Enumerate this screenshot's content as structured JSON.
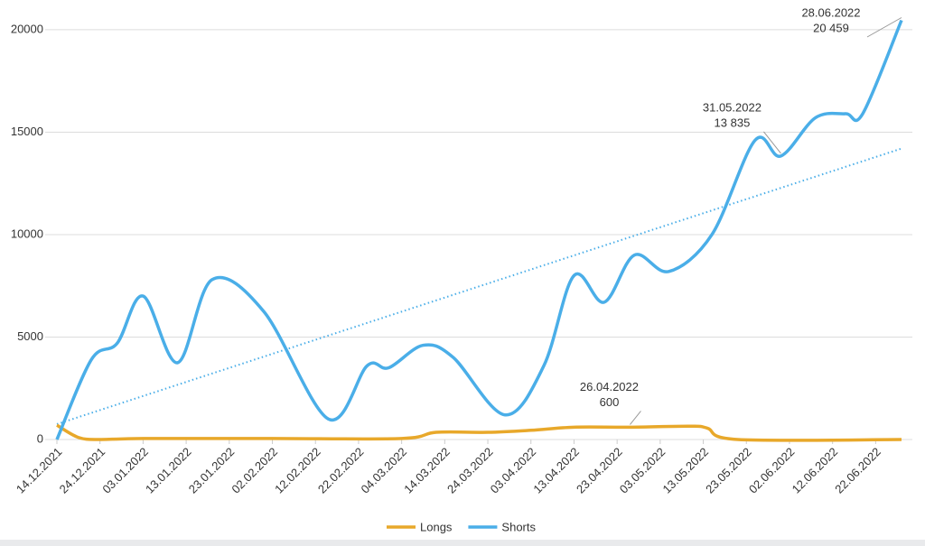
{
  "chart_data": {
    "type": "line",
    "ylim": [
      0,
      21450
    ],
    "yticks": [
      0,
      5000,
      10000,
      15000,
      20000
    ],
    "grid": true,
    "xlim": [
      "14.12.2021",
      "28.06.2022"
    ],
    "xticks": [
      "14.12.2021",
      "24.12.2021",
      "03.01.2022",
      "13.01.2022",
      "23.01.2022",
      "02.02.2022",
      "12.02.2022",
      "22.02.2022",
      "04.03.2022",
      "14.03.2022",
      "24.03.2022",
      "03.04.2022",
      "13.04.2022",
      "23.04.2022",
      "03.05.2022",
      "13.05.2022",
      "23.05.2022",
      "02.06.2022",
      "12.06.2022",
      "22.06.2022"
    ],
    "legend": "bottom",
    "series": [
      {
        "name": "Longs",
        "color": "#e8a82a",
        "x": [
          "14.12.2021",
          "19.12.2021",
          "24.12.2021",
          "03.01.2022",
          "02.02.2022",
          "04.03.2022",
          "12.03.2022",
          "24.03.2022",
          "03.04.2022",
          "13.04.2022",
          "26.04.2022",
          "10.05.2022",
          "14.05.2022",
          "21.05.2022",
          "28.06.2022"
        ],
        "values": [
          700,
          100,
          0,
          50,
          50,
          50,
          350,
          350,
          450,
          600,
          600,
          650,
          550,
          0,
          0
        ],
        "value_labels": [
          null,
          null,
          null,
          null,
          null,
          null,
          null,
          null,
          null,
          null,
          "600",
          null,
          null,
          null,
          null
        ]
      },
      {
        "name": "Shorts",
        "color": "#4aaee8",
        "x": [
          "14.12.2021",
          "22.12.2021",
          "28.12.2021",
          "03.01.2022",
          "11.01.2022",
          "19.01.2022",
          "31.01.2022",
          "15.02.2022",
          "24.02.2022",
          "01.03.2022",
          "09.03.2022",
          "16.03.2022",
          "28.03.2022",
          "06.04.2022",
          "13.04.2022",
          "20.04.2022",
          "27.04.2022",
          "05.05.2022",
          "15.05.2022",
          "25.05.2022",
          "31.05.2022",
          "08.06.2022",
          "15.06.2022",
          "19.06.2022",
          "28.06.2022"
        ],
        "values": [
          0,
          3900,
          4700,
          7000,
          3750,
          7800,
          6250,
          1000,
          3600,
          3500,
          4600,
          4000,
          1200,
          3600,
          8000,
          6700,
          9000,
          8200,
          10000,
          14600,
          13835,
          15700,
          15900,
          15900,
          20459
        ],
        "value_labels": [
          null,
          null,
          null,
          null,
          null,
          null,
          null,
          null,
          null,
          null,
          null,
          null,
          null,
          null,
          null,
          null,
          null,
          null,
          null,
          null,
          "13 835",
          null,
          null,
          null,
          "20 459"
        ]
      }
    ],
    "trendline": {
      "color": "#4aaee8",
      "x": [
        "14.12.2021",
        "28.06.2022"
      ],
      "values": [
        750,
        14200
      ]
    }
  }
}
